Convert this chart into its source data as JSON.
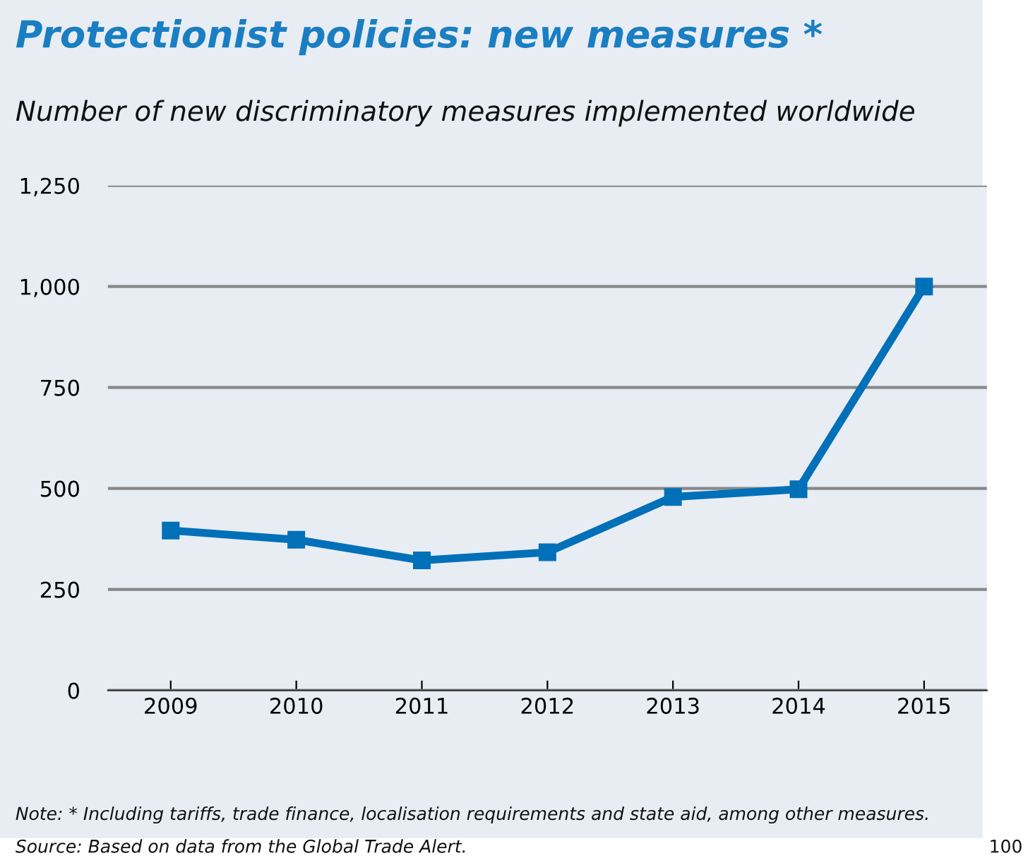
{
  "chart_data": {
    "type": "line",
    "title": "Protectionist policies: new measures *",
    "subtitle": "Number of new discriminatory measures implemented worldwide",
    "categories": [
      "2009",
      "2010",
      "2011",
      "2012",
      "2013",
      "2014",
      "2015"
    ],
    "series": [
      {
        "color": "#0070b8",
        "values": [
          396,
          373,
          322,
          342,
          479,
          498,
          1000
        ]
      }
    ],
    "ylim": [
      0,
      1250
    ],
    "yticks": [
      0,
      {
        "value": 250,
        "label": "250"
      },
      {
        "value": 500,
        "label": "500"
      },
      {
        "value": 750,
        "label": "750"
      },
      {
        "value": 1000,
        "label": "1,000"
      },
      {
        "value": 1250,
        "label": "1,250"
      }
    ],
    "grid": "y",
    "marker": "square",
    "line_style": "solid",
    "annotations": [
      "Note: * Including tariffs, trade finance, localisation requirements and state aid, among other measures.",
      "Source: Based on data from the Global Trade Alert.",
      "100"
    ]
  }
}
